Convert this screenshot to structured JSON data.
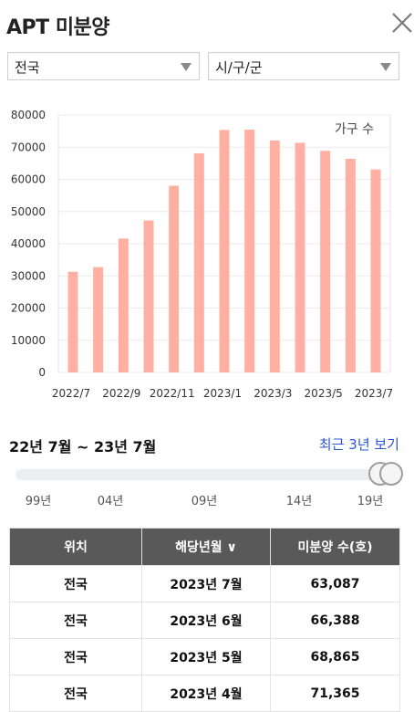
{
  "header": {
    "title": "APT 미분양"
  },
  "filters": {
    "region": "전국",
    "district": "시/구/군"
  },
  "chart_data": {
    "type": "bar",
    "legend": "가구 수",
    "legend_position": "top-right",
    "categories": [
      "2022/7",
      "2022/8",
      "2022/9",
      "2022/10",
      "2022/11",
      "2022/12",
      "2023/1",
      "2023/2",
      "2023/3",
      "2023/4",
      "2023/5",
      "2023/6",
      "2023/7"
    ],
    "x_tick_labels": [
      "2022/7",
      "2022/9",
      "2022/11",
      "2023/1",
      "2023/3",
      "2023/5",
      "2023/7"
    ],
    "values": [
      31284,
      32722,
      41604,
      47217,
      58027,
      68107,
      75359,
      75438,
      72104,
      71365,
      68865,
      66388,
      63087
    ],
    "ylim": [
      0,
      80000
    ],
    "yticks": [
      0,
      10000,
      20000,
      30000,
      40000,
      50000,
      60000,
      70000,
      80000
    ],
    "bar_color": "#ffb0a2",
    "grid": true
  },
  "range": {
    "label": "22년 7월 ~ 23년 7월",
    "recent_label": "최근 3년 보기",
    "ticks": [
      "99년",
      "04년",
      "09년",
      "14년",
      "19년"
    ]
  },
  "table": {
    "headers": [
      "위치",
      "해당년월 ∨",
      "미분양 수(호)"
    ],
    "rows": [
      [
        "전국",
        "2023년 7월",
        "63,087"
      ],
      [
        "전국",
        "2023년 6월",
        "66,388"
      ],
      [
        "전국",
        "2023년 5월",
        "68,865"
      ],
      [
        "전국",
        "2023년 4월",
        "71,365"
      ]
    ]
  }
}
